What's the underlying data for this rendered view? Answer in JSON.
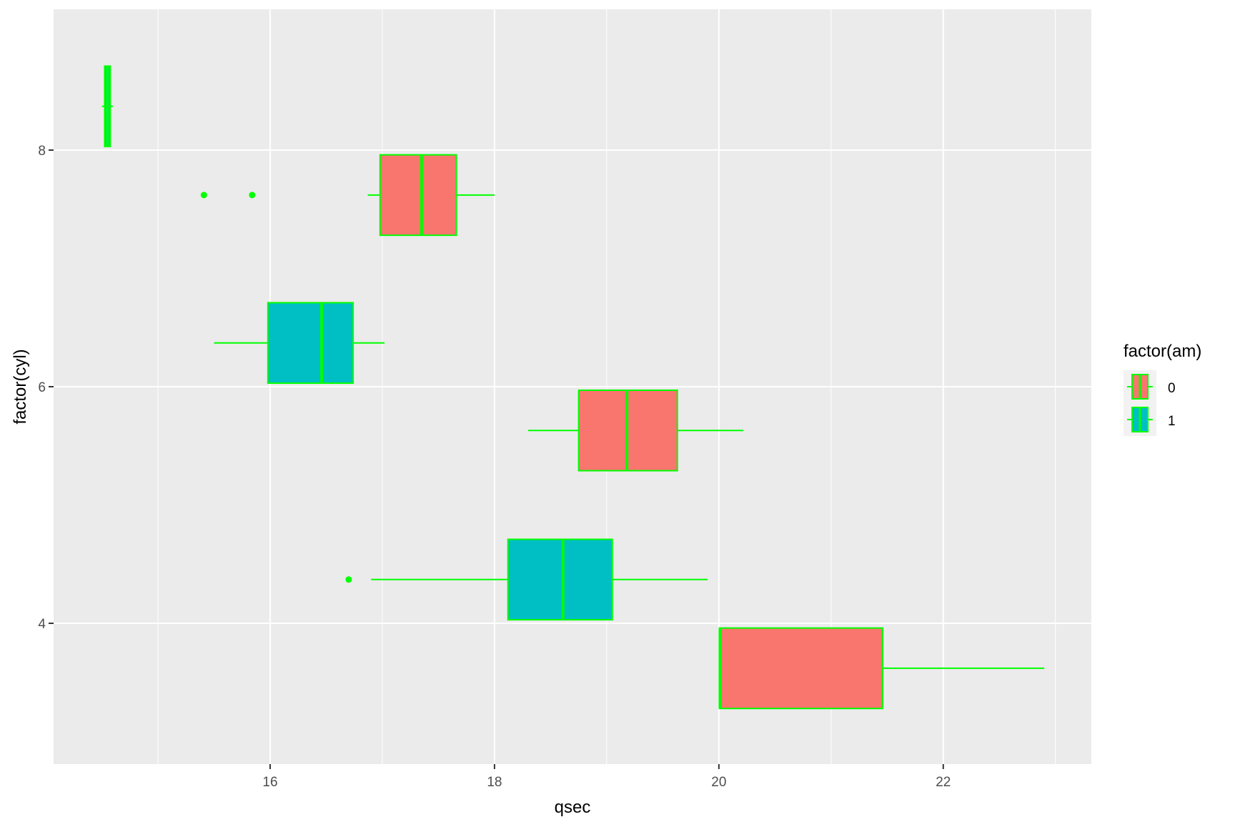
{
  "chart_data": {
    "type": "boxplot",
    "orientation": "horizontal",
    "title": "",
    "xlabel": "qsec",
    "ylabel": "factor(cyl)",
    "xlim": [
      14.07,
      23.32
    ],
    "ylim": [
      2.81,
      9.19
    ],
    "x_ticks": [
      16,
      18,
      20,
      22
    ],
    "x_minor_ticks": [
      15,
      17,
      19,
      21,
      23
    ],
    "y_ticks": [
      4,
      6,
      8
    ],
    "grid": true,
    "panel_background": "#EBEBEB",
    "outline_color": "#00FF00",
    "legend": {
      "title": "factor(am)",
      "placement": "right",
      "entries": [
        {
          "label": "0",
          "color": "#F8766D"
        },
        {
          "label": "1",
          "color": "#00BFC4"
        }
      ]
    },
    "boxes": [
      {
        "cyl": 8,
        "am": "0",
        "y": 7.62,
        "whisker_low": 16.87,
        "q1": 16.98,
        "median": 17.35,
        "q3": 17.66,
        "whisker_high": 18.0,
        "outliers": [
          15.41,
          15.84
        ]
      },
      {
        "cyl": 8,
        "am": "1",
        "y": 8.37,
        "whisker_low": 14.5,
        "q1": 14.525,
        "median": 14.55,
        "q3": 14.575,
        "whisker_high": 14.6,
        "outliers": []
      },
      {
        "cyl": 6,
        "am": "0",
        "y": 5.63,
        "whisker_low": 18.3,
        "q1": 18.75,
        "median": 19.18,
        "q3": 19.63,
        "whisker_high": 20.22,
        "outliers": []
      },
      {
        "cyl": 6,
        "am": "1",
        "y": 6.37,
        "whisker_low": 15.5,
        "q1": 15.98,
        "median": 16.46,
        "q3": 16.74,
        "whisker_high": 17.02,
        "outliers": []
      },
      {
        "cyl": 4,
        "am": "0",
        "y": 3.62,
        "whisker_low": 20.0,
        "q1": 20.005,
        "median": 20.01,
        "q3": 21.46,
        "whisker_high": 22.9,
        "outliers": []
      },
      {
        "cyl": 4,
        "am": "1",
        "y": 4.37,
        "whisker_low": 16.9,
        "q1": 18.12,
        "median": 18.61,
        "q3": 19.05,
        "whisker_high": 19.9,
        "outliers": [
          16.7
        ]
      }
    ],
    "box_half_height": 0.34
  }
}
